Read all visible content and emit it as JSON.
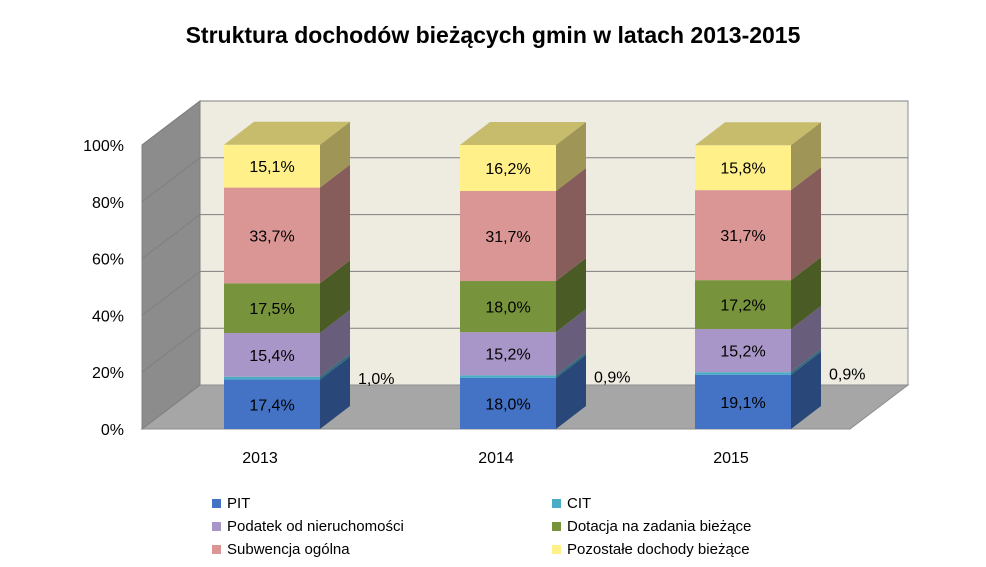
{
  "chart_data": {
    "type": "bar",
    "stacked": true,
    "percent_stacked": true,
    "three_d": true,
    "title": "Struktura dochodów bieżących gmin w latach 2013-2015",
    "categories": [
      "2013",
      "2014",
      "2015"
    ],
    "y_ticks": [
      "0%",
      "20%",
      "40%",
      "60%",
      "80%",
      "100%"
    ],
    "ylim": [
      0,
      100
    ],
    "grid": true,
    "legend_position": "bottom",
    "series": [
      {
        "name": "PIT",
        "color": "#4472C4",
        "values": [
          17.4,
          18.0,
          19.1
        ],
        "labels": [
          "17,4%",
          "18,0%",
          "19,1%"
        ]
      },
      {
        "name": "CIT",
        "color": "#4BACC6",
        "values": [
          1.0,
          0.9,
          0.9
        ],
        "labels": [
          "1,0%",
          "0,9%",
          "0,9%"
        ]
      },
      {
        "name": "Podatek od nieruchomości",
        "color": "#A996C8",
        "values": [
          15.4,
          15.2,
          15.2
        ],
        "labels": [
          "15,4%",
          "15,2%",
          "15,2%"
        ]
      },
      {
        "name": "Dotacja na zadania bieżące",
        "color": "#77933C",
        "values": [
          17.5,
          18.0,
          17.2
        ],
        "labels": [
          "17,5%",
          "18,0%",
          "17,2%"
        ]
      },
      {
        "name": "Subwencja ogólna",
        "color": "#DA9694",
        "values": [
          33.7,
          31.7,
          31.7
        ],
        "labels": [
          "33,7%",
          "31,7%",
          "31,7%"
        ]
      },
      {
        "name": "Pozostałe dochody bieżące",
        "color": "#FFF08A",
        "values": [
          15.1,
          16.2,
          15.8
        ],
        "labels": [
          "15,1%",
          "16,2%",
          "15,8%"
        ]
      }
    ]
  }
}
